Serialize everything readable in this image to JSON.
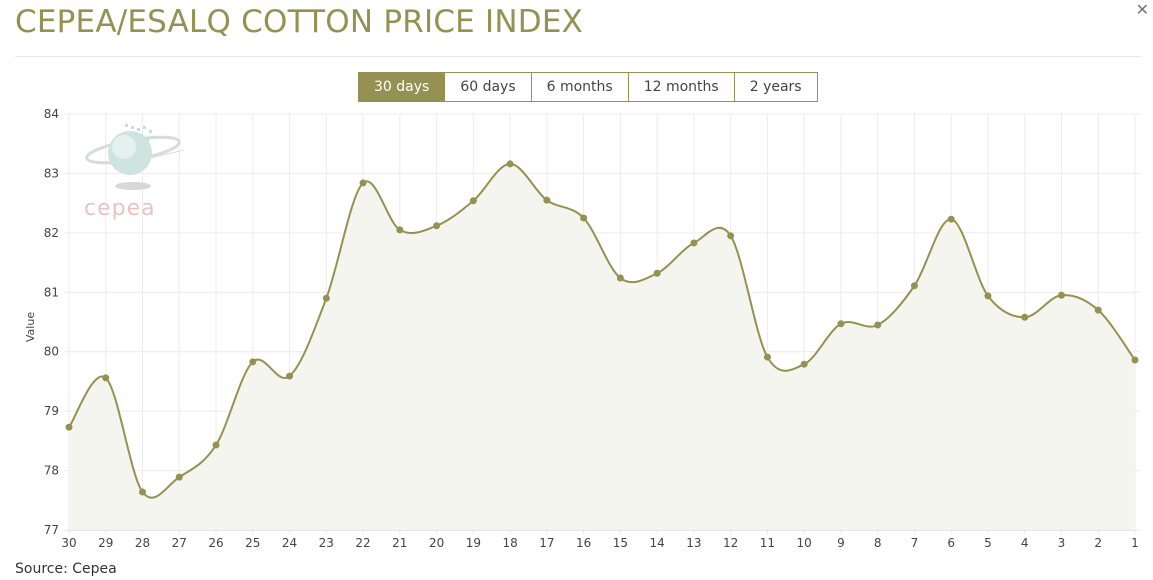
{
  "header": {
    "title": "CEPEA/ESALQ COTTON PRICE INDEX",
    "close_icon": "close-icon"
  },
  "range_buttons": [
    {
      "label": "30 days",
      "active": true
    },
    {
      "label": "60 days",
      "active": false
    },
    {
      "label": "6 months",
      "active": false
    },
    {
      "label": "12 months",
      "active": false
    },
    {
      "label": "2 years",
      "active": false
    }
  ],
  "logo": {
    "text": "cepea"
  },
  "footer": {
    "source": "Source: Cepea"
  },
  "colors": {
    "accent": "#959152",
    "fill": "#f5f5f0",
    "grid": "#ececec"
  },
  "chart_data": {
    "type": "line",
    "title": "CEPEA/ESALQ COTTON PRICE INDEX",
    "xlabel": "",
    "ylabel": "Value",
    "ylim": [
      77,
      84
    ],
    "yticks": [
      77,
      78,
      79,
      80,
      81,
      82,
      83,
      84
    ],
    "grid": true,
    "categories": [
      "30",
      "29",
      "28",
      "27",
      "26",
      "25",
      "24",
      "23",
      "22",
      "21",
      "20",
      "19",
      "18",
      "17",
      "16",
      "15",
      "14",
      "13",
      "12",
      "11",
      "10",
      "9",
      "8",
      "7",
      "6",
      "5",
      "4",
      "3",
      "2",
      "1"
    ],
    "series": [
      {
        "name": "Value",
        "values": [
          78.73,
          79.56,
          77.64,
          77.89,
          78.43,
          79.83,
          79.59,
          80.9,
          82.84,
          82.05,
          82.12,
          82.54,
          83.16,
          82.55,
          82.25,
          81.24,
          81.32,
          81.83,
          81.95,
          79.91,
          79.79,
          80.47,
          80.45,
          81.11,
          82.23,
          80.94,
          80.58,
          80.95,
          80.7,
          79.86
        ]
      }
    ]
  }
}
